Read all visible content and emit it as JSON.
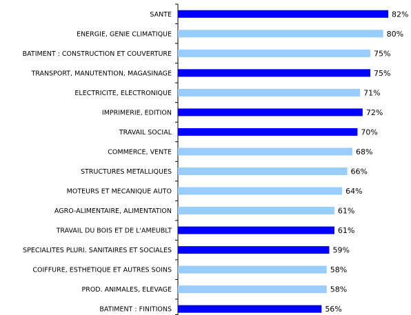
{
  "chart_data": {
    "type": "barh",
    "categories": [
      "SANTE",
      "ENERGIE, GENIE CLIMATIQUE",
      "BATIMENT : CONSTRUCTION ET COUVERTURE",
      "TRANSPORT, MANUTENTION, MAGASINAGE",
      "ELECTRICITE, ELECTRONIQUE",
      "IMPRIMERIE, EDITION",
      "TRAVAIL SOCIAL",
      "COMMERCE, VENTE",
      "STRUCTURES METALLIQUES",
      "MOTEURS ET MECANIQUE AUTO",
      "AGRO-ALIMENTAIRE, ALIMENTATION",
      "TRAVAIL DU BOIS ET DE L'AMEUBLT",
      "SPECIALITES PLURI. SANITAIRES ET SOCIALES",
      "COIFFURE, ESTHETIQUE ET AUTRES SOINS",
      "PROD. ANIMALES, ELEVAGE",
      "BATIMENT : FINITIONS"
    ],
    "values": [
      82,
      80,
      75,
      75,
      71,
      72,
      70,
      68,
      66,
      64,
      61,
      61,
      59,
      58,
      58,
      56
    ],
    "value_labels": [
      "82%",
      "80%",
      "75%",
      "75%",
      "71%",
      "72%",
      "70%",
      "68%",
      "66%",
      "64%",
      "61%",
      "61%",
      "59%",
      "58%",
      "58%",
      "56%"
    ],
    "colors": [
      "#0000ff",
      "#99ccff",
      "#99ccff",
      "#0000ff",
      "#99ccff",
      "#0000ff",
      "#0000ff",
      "#99ccff",
      "#99ccff",
      "#99ccff",
      "#99ccff",
      "#0000ff",
      "#0000ff",
      "#99ccff",
      "#99ccff",
      "#0000ff"
    ],
    "xlim": [
      0,
      100
    ]
  }
}
